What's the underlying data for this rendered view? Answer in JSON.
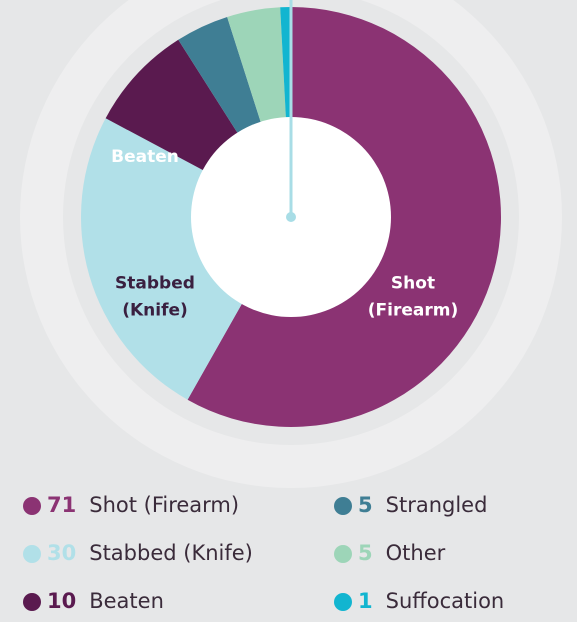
{
  "chart_data": {
    "type": "donut",
    "categories": [
      "Shot (Firearm)",
      "Stabbed (Knife)",
      "Beaten",
      "Strangled",
      "Other",
      "Suffocation"
    ],
    "values": [
      71,
      30,
      10,
      5,
      5,
      1
    ],
    "colors": [
      "#8b3373",
      "#b1e0e8",
      "#5a1a4f",
      "#3f7e94",
      "#9dd5b8",
      "#12b5d0"
    ],
    "slice_labels": [
      [
        "Shot",
        "(Firearm)"
      ],
      [
        "Stabbed",
        "(Knife)"
      ],
      [
        "Beaten"
      ]
    ]
  }
}
